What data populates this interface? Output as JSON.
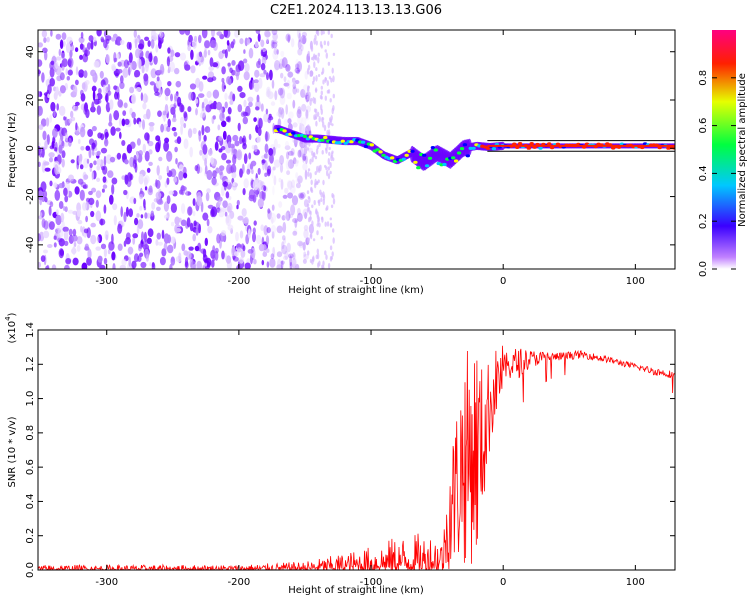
{
  "title": "C2E1.2024.113.13.13.G06",
  "chart_data": [
    {
      "type": "heatmap",
      "xlabel": "Height of straight line (km)",
      "ylabel": "Frequency (Hz)",
      "xlim": [
        -352,
        130
      ],
      "ylim": [
        -50,
        49
      ],
      "xticks": [
        -300,
        -200,
        -100,
        0,
        100
      ],
      "xtick_labels": [
        "-300",
        "-200",
        "-100",
        "0",
        "100"
      ],
      "yticks": [
        -40,
        -20,
        0,
        20,
        40
      ],
      "ytick_labels": [
        "-40",
        "-20",
        "0",
        "20",
        "40"
      ],
      "colorbar": {
        "label": "Normalized spectral amplitude",
        "range": [
          0.0,
          1.0
        ],
        "ticks": [
          0.0,
          0.2,
          0.4,
          0.6,
          0.8
        ],
        "tick_labels": [
          "0.0",
          "0.2",
          "0.4",
          "0.6",
          "0.8"
        ],
        "colormap": [
          "#ffffff",
          "#7a00ff",
          "#0000ff",
          "#00ffff",
          "#00ff00",
          "#ffff00",
          "#ff0000",
          "#ff0080"
        ]
      },
      "noise_region_x": [
        -352,
        -165
      ],
      "sparse_noise_columns_x": [
        -148,
        -128
      ],
      "signal_track": [
        [
          -170,
          8
        ],
        [
          -160,
          6
        ],
        [
          -150,
          4
        ],
        [
          -140,
          4
        ],
        [
          -130,
          3.5
        ],
        [
          -120,
          3
        ],
        [
          -110,
          3
        ],
        [
          -100,
          1
        ],
        [
          -90,
          -3
        ],
        [
          -80,
          -5
        ],
        [
          -70,
          -2
        ],
        [
          -60,
          -6
        ],
        [
          -50,
          -2
        ],
        [
          -40,
          -5
        ],
        [
          -30,
          0
        ],
        [
          -20,
          1
        ],
        [
          -10,
          0.5
        ],
        [
          0,
          1
        ],
        [
          20,
          1
        ],
        [
          50,
          1
        ],
        [
          90,
          1
        ],
        [
          130,
          1
        ]
      ],
      "grid": false
    },
    {
      "type": "line",
      "color": "#ff0000",
      "xlabel": "Height of straight line (km)",
      "ylabel": "SNR (10 * v/v)",
      "multiplier_label": "(x10",
      "multiplier_exp": "4",
      "xlim": [
        -352,
        130
      ],
      "ylim": [
        0,
        1.4
      ],
      "xticks": [
        -300,
        -200,
        -100,
        0,
        100
      ],
      "xtick_labels": [
        "-300",
        "-200",
        "-100",
        "0",
        "100"
      ],
      "yticks": [
        0.0,
        0.2,
        0.4,
        0.6,
        0.8,
        1.0,
        1.2,
        1.4
      ],
      "ytick_labels": [
        "0.0",
        "0.2",
        "0.4",
        "0.6",
        "0.8",
        "1.0",
        "1.2",
        "1.4"
      ],
      "envelope": {
        "x": [
          -352,
          -200,
          -150,
          -120,
          -100,
          -80,
          -60,
          -45,
          -40,
          -30,
          -20,
          -15,
          -10,
          -5,
          0,
          10,
          20,
          40,
          60,
          80,
          100,
          115,
          130
        ],
        "lo": [
          0.0,
          0.0,
          0.0,
          0.0,
          0.0,
          0.0,
          0.0,
          0.0,
          0.0,
          0.02,
          0.04,
          0.35,
          0.7,
          0.9,
          1.0,
          0.95,
          1.1,
          1.18,
          1.2,
          1.18,
          1.14,
          1.1,
          1.08
        ],
        "hi": [
          0.03,
          0.03,
          0.05,
          0.1,
          0.14,
          0.2,
          0.22,
          0.23,
          0.7,
          1.26,
          1.36,
          1.15,
          1.25,
          1.3,
          1.32,
          1.39,
          1.33,
          1.29,
          1.3,
          1.26,
          1.22,
          1.2,
          1.18
        ]
      },
      "grid": false
    }
  ]
}
